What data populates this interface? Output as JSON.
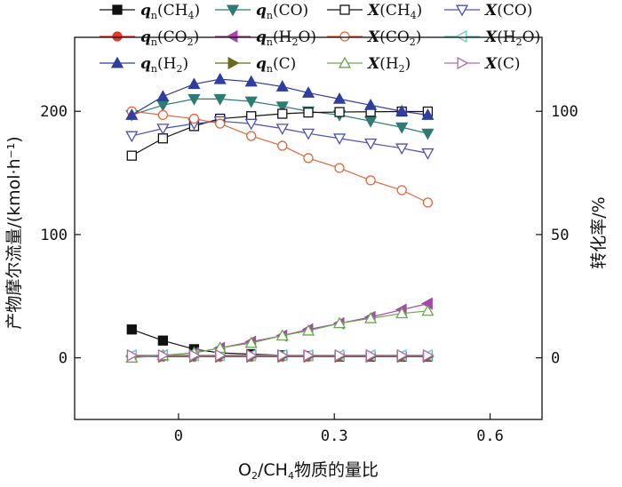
{
  "chart_data": {
    "type": "line",
    "xlabel_parts": {
      "a": "O",
      "a_sub": "2",
      "b": "/CH",
      "b_sub": "4",
      "c": "物质的量比"
    },
    "ylabel_left": "产物摩尔流量/(kmol·h⁻¹)",
    "ylabel_right": "转化率/%",
    "x_ticks": [
      "0",
      "0.3",
      "0.6"
    ],
    "y_left_ticks": [
      "0",
      "100",
      "200"
    ],
    "y_right_ticks": [
      "0",
      "50",
      "100"
    ],
    "xlim": [
      -0.2,
      0.7
    ],
    "ylim_left": [
      -50,
      260
    ],
    "ylim_right": [
      -25,
      130
    ],
    "x": [
      -0.09,
      -0.03,
      0.03,
      0.08,
      0.14,
      0.2,
      0.25,
      0.31,
      0.37,
      0.43,
      0.48
    ],
    "series": [
      {
        "key": "qCH4",
        "axis": "left",
        "marker": "square",
        "filled": true,
        "color": "#111111",
        "label": {
          "main": "q",
          "sub": "n",
          "rest": "(CH",
          "rsub": "4",
          "end": ")"
        },
        "values": [
          23,
          14,
          7,
          4,
          3,
          2,
          1.5,
          1,
          1,
          1,
          1
        ]
      },
      {
        "key": "qCO",
        "axis": "left",
        "marker": "triangle-down",
        "filled": true,
        "color": "#2e7b73",
        "label": {
          "main": "q",
          "sub": "n",
          "rest": "(CO)",
          "rsub": "",
          "end": ""
        },
        "values": [
          197,
          205,
          210,
          210,
          208,
          204,
          200,
          197,
          192,
          187,
          182
        ]
      },
      {
        "key": "XCH4",
        "axis": "right",
        "marker": "square",
        "filled": false,
        "color": "#111111",
        "label": {
          "main": "X",
          "sub": "",
          "rest": "(CH",
          "rsub": "4",
          "end": ")"
        },
        "values": [
          82,
          89,
          94,
          97,
          98,
          99,
          99.5,
          99.7,
          99.8,
          99.9,
          99.9
        ]
      },
      {
        "key": "XCO",
        "axis": "right",
        "marker": "triangle-down",
        "filled": false,
        "color": "#4b4fb8",
        "label": {
          "main": "X",
          "sub": "",
          "rest": "(CO)",
          "rsub": "",
          "end": ""
        },
        "values": [
          90,
          93,
          95,
          96,
          95,
          93,
          91,
          89,
          87,
          85,
          83
        ]
      },
      {
        "key": "qCO2",
        "axis": "left",
        "marker": "circle",
        "filled": true,
        "color": "#e23a2c",
        "label": {
          "main": "q",
          "sub": "n",
          "rest": "(CO",
          "rsub": "2",
          "end": ")"
        },
        "values": [
          1,
          1,
          1,
          1,
          1,
          1,
          1,
          1,
          1,
          1,
          1
        ]
      },
      {
        "key": "qH2O",
        "axis": "left",
        "marker": "triangle-left",
        "filled": true,
        "color": "#a548a8",
        "label": {
          "main": "q",
          "sub": "n",
          "rest": "(H",
          "rsub": "2",
          "end": "O)"
        },
        "values": [
          1,
          2,
          4,
          8,
          13,
          18,
          23,
          28,
          33,
          39,
          44
        ]
      },
      {
        "key": "XCO2",
        "axis": "right",
        "marker": "circle",
        "filled": false,
        "color": "#e4663c",
        "label": {
          "main": "X",
          "sub": "",
          "rest": "(CO",
          "rsub": "2",
          "end": ")"
        },
        "values": [
          100,
          98.5,
          97,
          95,
          90,
          86,
          81,
          77,
          72,
          68,
          63
        ]
      },
      {
        "key": "XH2O",
        "axis": "right",
        "marker": "triangle-left",
        "filled": false,
        "color": "#6cc7c7",
        "label": {
          "main": "X",
          "sub": "",
          "rest": "(H",
          "rsub": "2",
          "end": "O)"
        },
        "values": [
          1,
          1,
          1,
          1,
          1,
          1,
          1,
          1,
          1,
          1,
          1
        ]
      },
      {
        "key": "qH2",
        "axis": "left",
        "marker": "triangle-up",
        "filled": true,
        "color": "#2f3f9e",
        "label": {
          "main": "q",
          "sub": "n",
          "rest": "(H",
          "rsub": "2",
          "end": ")"
        },
        "values": [
          197,
          212,
          222,
          226,
          224,
          220,
          215,
          210,
          205,
          200,
          197
        ]
      },
      {
        "key": "qC",
        "axis": "left",
        "marker": "triangle-right",
        "filled": true,
        "color": "#6b6a1f",
        "label": {
          "main": "q",
          "sub": "n",
          "rest": "(C)",
          "rsub": "",
          "end": ""
        },
        "values": [
          1,
          1,
          1,
          1,
          1,
          1,
          1,
          1,
          1,
          1,
          1
        ]
      },
      {
        "key": "XH2",
        "axis": "right",
        "marker": "triangle-up",
        "filled": false,
        "color": "#6aa84f",
        "label": {
          "main": "X",
          "sub": "",
          "rest": "(H",
          "rsub": "2",
          "end": ")"
        },
        "values": [
          0,
          1,
          2,
          4,
          6,
          9,
          11,
          14,
          16,
          18,
          19
        ]
      },
      {
        "key": "XC",
        "axis": "right",
        "marker": "triangle-right",
        "filled": false,
        "color": "#b06ab6",
        "label": {
          "main": "X",
          "sub": "",
          "rest": "(C)",
          "rsub": "",
          "end": ""
        },
        "values": [
          1,
          1,
          1,
          1,
          1,
          1,
          1,
          1,
          1,
          1,
          1
        ]
      }
    ],
    "grid": false,
    "legend": "top"
  }
}
